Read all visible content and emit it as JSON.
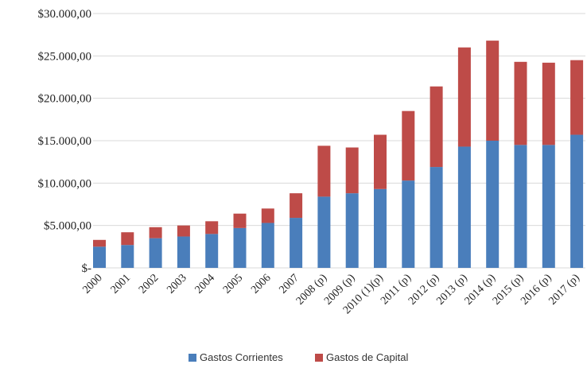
{
  "chart_data": {
    "type": "bar",
    "stacked": true,
    "categories": [
      "2000",
      "2001",
      "2002",
      "2003",
      "2004",
      "2005",
      "2006",
      "2007",
      "2008 (p)",
      "2009 (p)",
      "2010 (1)(p)",
      "2011 (p)",
      "2012 (p)",
      "2013 (p)",
      "2014 (p)",
      "2015 (p)",
      "2016 (p)",
      "2017 (p)"
    ],
    "series": [
      {
        "name": "Gastos Corrientes",
        "color": "#4a7ebb",
        "values": [
          2500,
          2700,
          3500,
          3700,
          4000,
          4700,
          5300,
          5900,
          8400,
          8800,
          9300,
          10300,
          11900,
          14300,
          15000,
          14500,
          14500,
          15700
        ]
      },
      {
        "name": "Gastos de Capital",
        "color": "#be4b48",
        "values": [
          800,
          1500,
          1300,
          1300,
          1500,
          1700,
          1700,
          2900,
          6000,
          5400,
          6400,
          8200,
          9500,
          11700,
          11800,
          9800,
          9700,
          8800
        ]
      }
    ],
    "ylim": [
      0,
      30000
    ],
    "yticks": [
      {
        "value": 0,
        "label": "$-"
      },
      {
        "value": 5000,
        "label": "$5.000,00"
      },
      {
        "value": 10000,
        "label": "$10.000,00"
      },
      {
        "value": 15000,
        "label": "$15.000,00"
      },
      {
        "value": 20000,
        "label": "$20.000,00"
      },
      {
        "value": 25000,
        "label": "$25.000,00"
      },
      {
        "value": 30000,
        "label": "$30.000,00"
      }
    ],
    "grid": true,
    "legend_position": "bottom-center",
    "title": "",
    "xlabel": "",
    "ylabel": ""
  }
}
